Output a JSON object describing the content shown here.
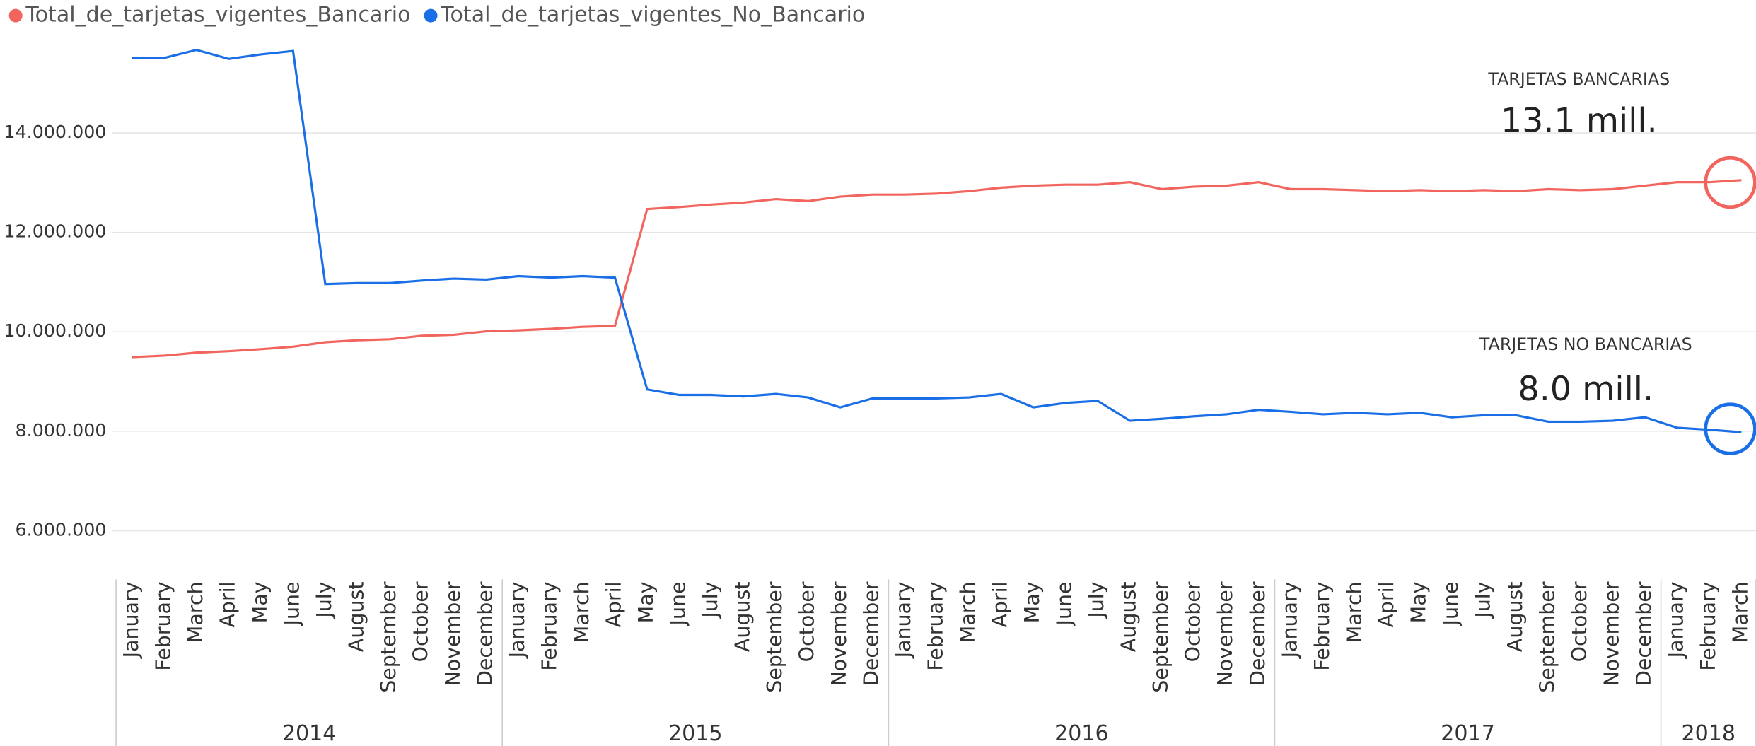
{
  "chart_data": {
    "type": "line",
    "categories": [
      "January",
      "February",
      "March",
      "April",
      "May",
      "June",
      "July",
      "August",
      "September",
      "October",
      "November",
      "December",
      "January",
      "February",
      "March",
      "April",
      "May",
      "June",
      "July",
      "August",
      "September",
      "October",
      "November",
      "December",
      "January",
      "February",
      "March",
      "April",
      "May",
      "June",
      "July",
      "August",
      "September",
      "October",
      "November",
      "December",
      "January",
      "February",
      "March",
      "April",
      "May",
      "June",
      "July",
      "August",
      "September",
      "October",
      "November",
      "December",
      "January",
      "February",
      "March"
    ],
    "x_groups": [
      {
        "label": "2014",
        "size": 12
      },
      {
        "label": "2015",
        "size": 12
      },
      {
        "label": "2016",
        "size": 12
      },
      {
        "label": "2017",
        "size": 12
      },
      {
        "label": "2018",
        "size": 3
      }
    ],
    "series": [
      {
        "name": "Total_de_tarjetas_vigentes_Bancario",
        "color": "#f2655f",
        "values": [
          9490000,
          9520000,
          9580000,
          9610000,
          9650000,
          9700000,
          9790000,
          9830000,
          9850000,
          9920000,
          9940000,
          10010000,
          10030000,
          10060000,
          10100000,
          10120000,
          12470000,
          12510000,
          12560000,
          12600000,
          12670000,
          12630000,
          12720000,
          12760000,
          12760000,
          12780000,
          12830000,
          12900000,
          12940000,
          12960000,
          12960000,
          13010000,
          12870000,
          12920000,
          12940000,
          13010000,
          12870000,
          12870000,
          12850000,
          12830000,
          12850000,
          12830000,
          12850000,
          12830000,
          12870000,
          12850000,
          12870000,
          12940000,
          13010000,
          13010000,
          13050000
        ]
      },
      {
        "name": "Total_de_tarjetas_vigentes_No_Bancario",
        "color": "#1a6ee6",
        "values": [
          15510000,
          15510000,
          15670000,
          15490000,
          15580000,
          15650000,
          10960000,
          10980000,
          10980000,
          11030000,
          11070000,
          11050000,
          11120000,
          11090000,
          11120000,
          11090000,
          8840000,
          8730000,
          8730000,
          8700000,
          8750000,
          8680000,
          8480000,
          8660000,
          8660000,
          8660000,
          8680000,
          8750000,
          8480000,
          8570000,
          8610000,
          8210000,
          8250000,
          8300000,
          8340000,
          8430000,
          8390000,
          8340000,
          8370000,
          8340000,
          8370000,
          8280000,
          8320000,
          8320000,
          8190000,
          8190000,
          8210000,
          8280000,
          8070000,
          8030000,
          7980000
        ]
      }
    ],
    "ylim": [
      5200000,
      16000000
    ],
    "yticks": [
      {
        "value": 6000000,
        "label": "6.000.000"
      },
      {
        "value": 8000000,
        "label": "8.000.000"
      },
      {
        "value": 10000000,
        "label": "10.000.000"
      },
      {
        "value": 12000000,
        "label": "12.000.000"
      },
      {
        "value": 14000000,
        "label": "14.000.000"
      }
    ],
    "grid": true,
    "legend": "top-left",
    "annotations": [
      {
        "title": "TARJETAS BANCARIAS",
        "text": "13.1 mill."
      },
      {
        "title": "TARJETAS NO BANCARIAS",
        "text": "8.0 mill."
      }
    ]
  }
}
